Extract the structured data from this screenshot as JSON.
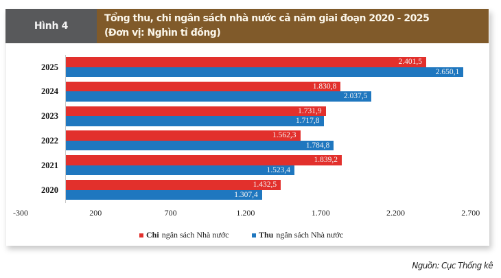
{
  "header": {
    "label": "Hình 4",
    "title_line1": "Tổng thu, chi ngân sách nhà nước cả năm giai đoạn 2020 - 2025",
    "title_line2": "(Đơn vị: Nghìn tỉ đồng)"
  },
  "colors": {
    "header_label_bg": "#58595b",
    "header_title_bg": "#805a2a",
    "chi": "#e2302c",
    "thu": "#1f77bf"
  },
  "legend": {
    "chi_strong": "Chi",
    "chi_rest": "ngân sách Nhà nước",
    "thu_strong": "Thu",
    "thu_rest": "ngân sách Nhà nước"
  },
  "source": "Nguồn: Cục Thống kê",
  "chart_data": {
    "type": "bar",
    "orientation": "horizontal",
    "title": "Tổng thu, chi ngân sách nhà nước cả năm giai đoạn 2020 - 2025",
    "subtitle": "(Đơn vị: Nghìn tỉ đồng)",
    "categories": [
      "2025",
      "2024",
      "2023",
      "2022",
      "2021",
      "2020"
    ],
    "series": [
      {
        "name": "Chi ngân sách Nhà nước",
        "color": "#e2302c",
        "values": [
          2401.5,
          1830.8,
          1731.9,
          1562.3,
          1839.2,
          1432.5
        ],
        "labels": [
          "2.401,5",
          "1.830,8",
          "1.731,9",
          "1.562,3",
          "1.839,2",
          "1.432,5"
        ]
      },
      {
        "name": "Thu ngân sách Nhà nước",
        "color": "#1f77bf",
        "values": [
          2650.1,
          2037.5,
          1717.8,
          1784.8,
          1523.4,
          1307.4
        ],
        "labels": [
          "2.650,1",
          "2.037,5",
          "1.717,8",
          "1.784,8",
          "1.523,4",
          "1.307,4"
        ]
      }
    ],
    "xlabel": "",
    "ylabel": "",
    "xlim": [
      -300,
      2700
    ],
    "xticks": [
      -300,
      200,
      700,
      1200,
      1700,
      2200,
      2700
    ],
    "xtick_labels": [
      "-300",
      "200",
      "700",
      "1.200",
      "1.700",
      "2.200",
      "2.700"
    ],
    "grid": false,
    "legend_position": "bottom",
    "source": "Nguồn: Cục Thống kê"
  }
}
